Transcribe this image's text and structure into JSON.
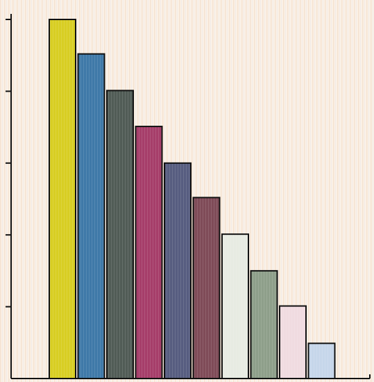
{
  "chart_data": {
    "type": "bar",
    "categories": [
      "",
      "",
      "",
      "",
      "",
      "",
      "",
      "",
      "",
      ""
    ],
    "values": [
      10,
      9.04,
      8.02,
      7.02,
      6,
      5.04,
      4.02,
      3,
      2.02,
      0.98
    ],
    "ylim": [
      0,
      10
    ],
    "yticks": [
      2,
      4,
      6,
      8,
      10
    ],
    "grid": false,
    "legend": false,
    "title": "",
    "xlabel": "",
    "ylabel": "",
    "colors": [
      "#d8ce23",
      "#3f79a8",
      "#515c56",
      "#a63e6a",
      "#575d80",
      "#7f4b58",
      "#e7ebe2",
      "#8e9f8a",
      "#f0dbe0",
      "#c6d6ea"
    ],
    "background": "#fbf3ea",
    "stroke": "#111111"
  }
}
